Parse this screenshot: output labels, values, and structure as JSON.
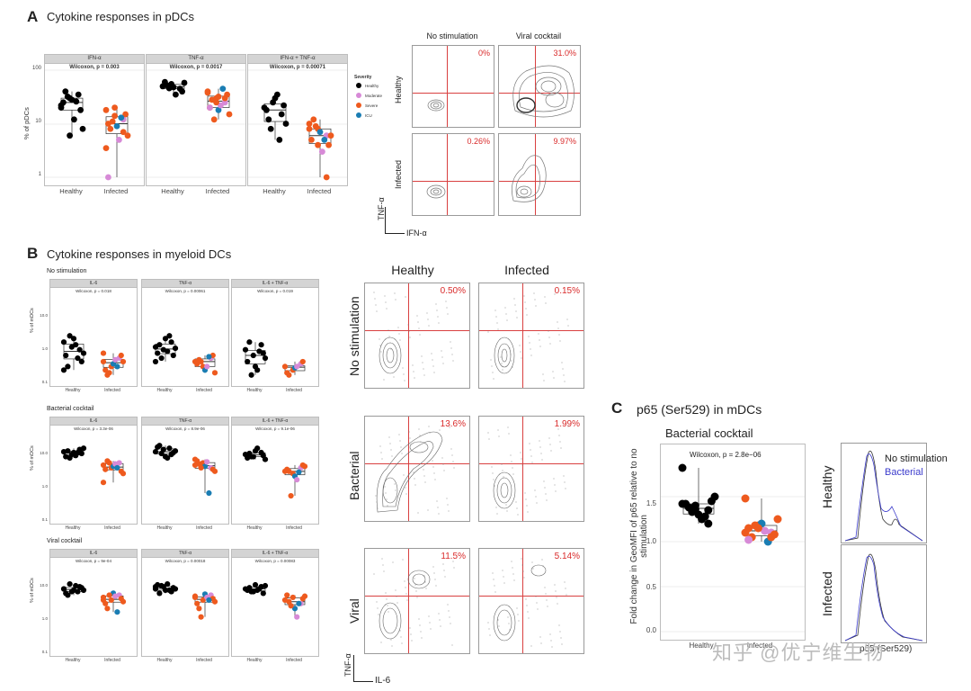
{
  "colors": {
    "healthy": "#000000",
    "moderate": "#d78ad7",
    "severe": "#ee5a1e",
    "icu": "#1a7db3",
    "gate": "#d94040",
    "bacterial_line": "#3b3bcc",
    "nostim_line": "#333333"
  },
  "sectionA": {
    "label": "A",
    "title": "Cytokine responses in pDCs",
    "ylabel": "% of pDCs",
    "yticks": [
      "100",
      "10",
      "1"
    ],
    "xticks": [
      "Healthy",
      "Infected"
    ],
    "panels": [
      {
        "strip": "IFN-α",
        "stat": "Wilcoxon, p = 0.003",
        "healthy": [
          22,
          30,
          35,
          25,
          28,
          18,
          40,
          12,
          8,
          32,
          26,
          20,
          6
        ],
        "infected": [
          18,
          14,
          12,
          10,
          9,
          15,
          8,
          5,
          6,
          11,
          13,
          3.5,
          20,
          7,
          1
        ]
      },
      {
        "strip": "TNF-α",
        "stat": "Wilcoxon, p = 0.0017",
        "healthy": [
          50,
          55,
          45,
          60,
          48,
          40,
          52,
          35,
          58,
          46
        ],
        "infected": [
          40,
          30,
          25,
          20,
          18,
          35,
          28,
          22,
          15,
          12,
          45,
          38,
          25,
          30,
          20,
          32
        ]
      },
      {
        "strip": "IFN-α + TNF-α",
        "stat": "Wilcoxon, p = 0.00071",
        "healthy": [
          20,
          25,
          15,
          18,
          30,
          22,
          12,
          35,
          10,
          8,
          5
        ],
        "infected": [
          10,
          8,
          6,
          5,
          7,
          4,
          12,
          3,
          6,
          9,
          5,
          8,
          4,
          1
        ]
      }
    ],
    "legend": {
      "title": "Severity",
      "items": [
        "Healthy",
        "Moderate",
        "Severe",
        "ICU"
      ]
    },
    "flow": {
      "cols": [
        "No stimulation",
        "Viral cocktail"
      ],
      "rows": [
        "Healthy",
        "Infected"
      ],
      "pcts": [
        [
          "0%",
          "31.0%"
        ],
        [
          "0.26%",
          "9.97%"
        ]
      ],
      "yaxis": "TNF-α",
      "xaxis": "IFN-α"
    }
  },
  "sectionB": {
    "label": "B",
    "title": "Cytokine responses in myeloid DCs",
    "ylabel": "% of mDCs",
    "xticks": [
      "Healthy",
      "Infected"
    ],
    "groups": [
      {
        "title": "No stimulation",
        "yticks": [
          "10.0",
          "1.0",
          "0.1"
        ],
        "panels": [
          {
            "strip": "IL-6",
            "stat": "Wilcoxon, p = 0.018",
            "healthy": [
              1.5,
              1.0,
              0.8,
              0.5,
              2.0,
              0.3,
              0.2,
              1.2,
              0.6,
              2.5,
              0.4,
              0.15
            ],
            "infected": [
              0.3,
              0.2,
              0.4,
              0.15,
              0.25,
              0.5,
              0.1,
              0.35,
              0.3,
              0.12,
              0.2,
              0.6
            ]
          },
          {
            "strip": "TNF-α",
            "stat": "Wilcoxon, p = 0.00061",
            "healthy": [
              1.0,
              0.8,
              1.5,
              0.6,
              2.0,
              0.5,
              1.2,
              0.7,
              0.9,
              0.4,
              2.5,
              0.3
            ],
            "infected": [
              0.3,
              0.2,
              0.4,
              0.25,
              0.15,
              0.5,
              0.35,
              0.2,
              0.12,
              0.3,
              0.45
            ]
          },
          {
            "strip": "IL-6 + TNF-α",
            "stat": "Wilcoxon, p = 0.019",
            "healthy": [
              0.8,
              0.5,
              1.2,
              0.3,
              0.2,
              0.6,
              1.5,
              0.15,
              0.4,
              0.1,
              0.7
            ],
            "infected": [
              0.2,
              0.15,
              0.25,
              0.12,
              0.18,
              0.3,
              0.1,
              0.2
            ]
          }
        ]
      },
      {
        "title": "Bacterial cocktail",
        "yticks": [
          "10.0",
          "1.0",
          "0.1"
        ],
        "panels": [
          {
            "strip": "IL-6",
            "stat": "Wilcoxon, p = 3.3e-06",
            "healthy": [
              15,
              12,
              18,
              10,
              14,
              13,
              16,
              11,
              20,
              9,
              14
            ],
            "infected": [
              5,
              4,
              6,
              3.5,
              4.5,
              3,
              7,
              5.5,
              2.5,
              6,
              4,
              1.2
            ]
          },
          {
            "strip": "TNF-α",
            "stat": "Wilcoxon, p = 8.9e-06",
            "healthy": [
              15,
              18,
              12,
              22,
              10,
              14,
              25,
              9,
              16,
              13,
              20
            ],
            "infected": [
              5,
              6,
              4,
              7,
              4.5,
              3.5,
              5.5,
              6.5,
              3,
              4,
              0.5,
              8
            ]
          },
          {
            "strip": "IL-6 + TNF-α",
            "stat": "Wilcoxon, p = 9.1e-06",
            "healthy": [
              12,
              10,
              14,
              9,
              16,
              11,
              13,
              20,
              8,
              10
            ],
            "infected": [
              3,
              2.5,
              4,
              3.5,
              2,
              5,
              3,
              1.5,
              4.5,
              0.4,
              2.8
            ]
          }
        ]
      },
      {
        "title": "Viral cocktail",
        "yticks": [
          "10.0",
          "1.0",
          "0.1"
        ],
        "panels": [
          {
            "strip": "IL-6",
            "stat": "Wilcoxon, p = 9e-04",
            "healthy": [
              10,
              8,
              12,
              7,
              9,
              11,
              6,
              13,
              9,
              15,
              8,
              10
            ],
            "infected": [
              5,
              4,
              6,
              3,
              7,
              4.5,
              2,
              5.5,
              3.5,
              6,
              1.5,
              4
            ]
          },
          {
            "strip": "TNF-α",
            "stat": "Wilcoxon, p = 0.00018",
            "healthy": [
              10,
              12,
              8,
              14,
              9,
              11,
              7,
              15,
              10,
              13,
              9,
              12
            ],
            "infected": [
              5,
              4,
              6,
              3,
              6.5,
              4.5,
              2,
              5,
              3.5,
              1,
              4,
              5.5
            ]
          },
          {
            "strip": "IL-6 + TNF-α",
            "stat": "Wilcoxon, p = 0.00083",
            "healthy": [
              10,
              8,
              12,
              9,
              14,
              7,
              11,
              9,
              13,
              8,
              10
            ],
            "infected": [
              4,
              5,
              3,
              6,
              2,
              4.5,
              3.5,
              1,
              5.5,
              2.5,
              3
            ]
          }
        ]
      }
    ],
    "flow": {
      "cols": [
        "Healthy",
        "Infected"
      ],
      "rows": [
        "No stimulation",
        "Bacterial",
        "Viral"
      ],
      "pcts": [
        [
          "0.50%",
          "0.15%"
        ],
        [
          "13.6%",
          "1.99%"
        ],
        [
          "11.5%",
          "5.14%"
        ]
      ],
      "yaxis": "TNF-α",
      "xaxis": "IL-6"
    }
  },
  "sectionC": {
    "label": "C",
    "title": "p65 (Ser529) in mDCs",
    "subtitle": "Bacterial cocktail",
    "stat": "Wilcoxon, p = 2.8e−06",
    "ylabel": "Fold change in GeoMFI of p65 relative to no stimulation",
    "yticks": [
      "1.5",
      "1.0",
      "0.5",
      "0.0"
    ],
    "xticks": [
      "Healthy",
      "Infected"
    ],
    "healthy": [
      1.82,
      1.4,
      1.35,
      1.42,
      1.3,
      1.45,
      1.38,
      1.25,
      1.5,
      1.33,
      1.28,
      1.42,
      1.36,
      1.2
    ],
    "infected": [
      1.48,
      1.18,
      1.1,
      1.15,
      1.2,
      1.08,
      1.05,
      1.12,
      1.25,
      1.18,
      1.0,
      1.1,
      1.15,
      1.05,
      1.02
    ],
    "legend": [
      "No stimulation",
      "Bacterial"
    ],
    "rows": [
      "Healthy",
      "Infected"
    ],
    "hist_xaxis": "p65 (Ser529)"
  },
  "watermark": "知乎 @优宁维生物"
}
